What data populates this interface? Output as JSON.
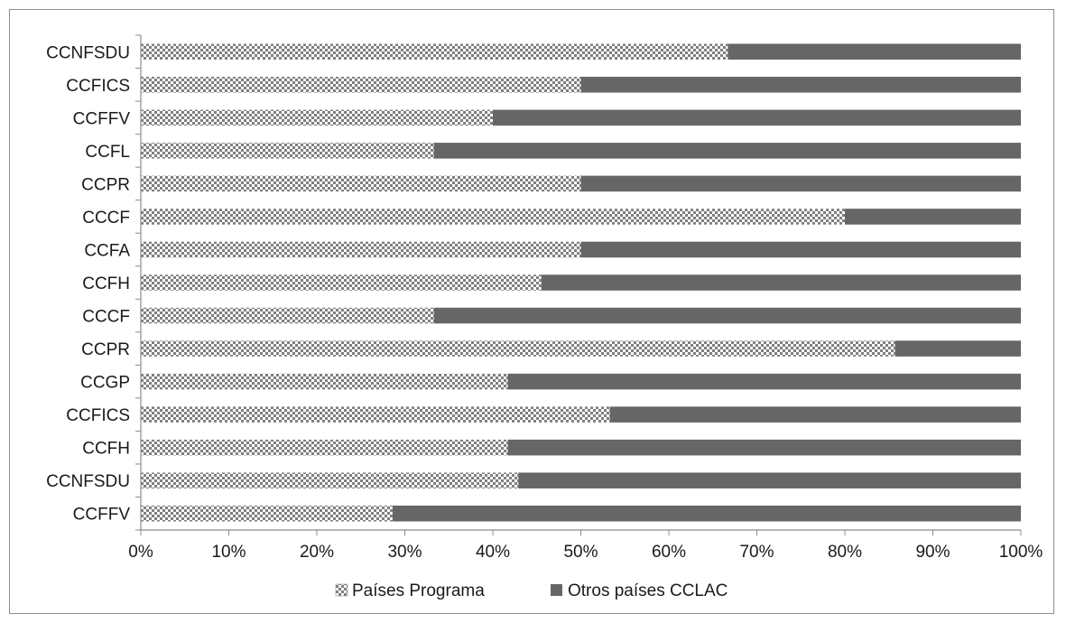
{
  "chart_data": {
    "type": "bar",
    "orientation": "horizontal",
    "stacked": true,
    "percent_stacked": true,
    "categories": [
      "CCNFSDU",
      "CCFICS",
      "CCFFV",
      "CCFL",
      "CCPR",
      "CCCF",
      "CCFA",
      "CCFH",
      "CCCF",
      "CCPR",
      "CCGP",
      "CCFICS",
      "CCFH",
      "CCNFSDU",
      "CCFFV"
    ],
    "series": [
      {
        "name": "Países Programa",
        "values": [
          66.7,
          50,
          40,
          33.3,
          50,
          80,
          50,
          45.5,
          33.3,
          85.7,
          41.7,
          53.3,
          41.7,
          42.9,
          28.6
        ]
      },
      {
        "name": "Otros países CCLAC",
        "values": [
          33.3,
          50,
          60,
          66.7,
          50,
          20,
          50,
          54.5,
          66.7,
          14.3,
          58.3,
          46.7,
          58.3,
          57.1,
          71.4
        ]
      }
    ],
    "xlim": [
      0,
      100
    ],
    "x_ticks": [
      "0%",
      "10%",
      "20%",
      "30%",
      "40%",
      "50%",
      "60%",
      "70%",
      "80%",
      "90%",
      "100%"
    ],
    "grid": false,
    "legend_position": "bottom",
    "colors": {
      "Países Programa": "#7f7f7f",
      "Otros países CCLAC": "#666666"
    },
    "patterns": {
      "Países Programa": "checkerboard",
      "Otros países CCLAC": "solid"
    }
  }
}
